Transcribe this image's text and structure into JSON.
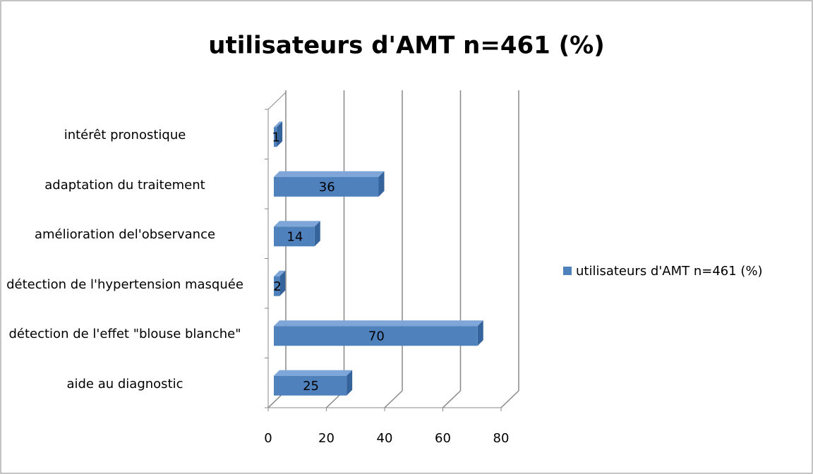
{
  "chart_data": {
    "type": "bar3d_h",
    "title": "utilisateurs d'AMT n=461 (%)",
    "categories": [
      "intérêt pronostique",
      "adaptation du traitement",
      "amélioration del'observance",
      "détection de l'hypertension masquée",
      "détection de l'effet \"blouse blanche\"",
      "aide au diagnostic"
    ],
    "series": [
      {
        "name": "utilisateurs d'AMT n=461 (%)",
        "color": "#4f81bd",
        "values": [
          1,
          36,
          14,
          2,
          70,
          25
        ]
      }
    ],
    "xlim": [
      0,
      80
    ],
    "xticks": [
      0,
      20,
      40,
      60,
      80
    ],
    "grid": true,
    "legend": "right"
  }
}
